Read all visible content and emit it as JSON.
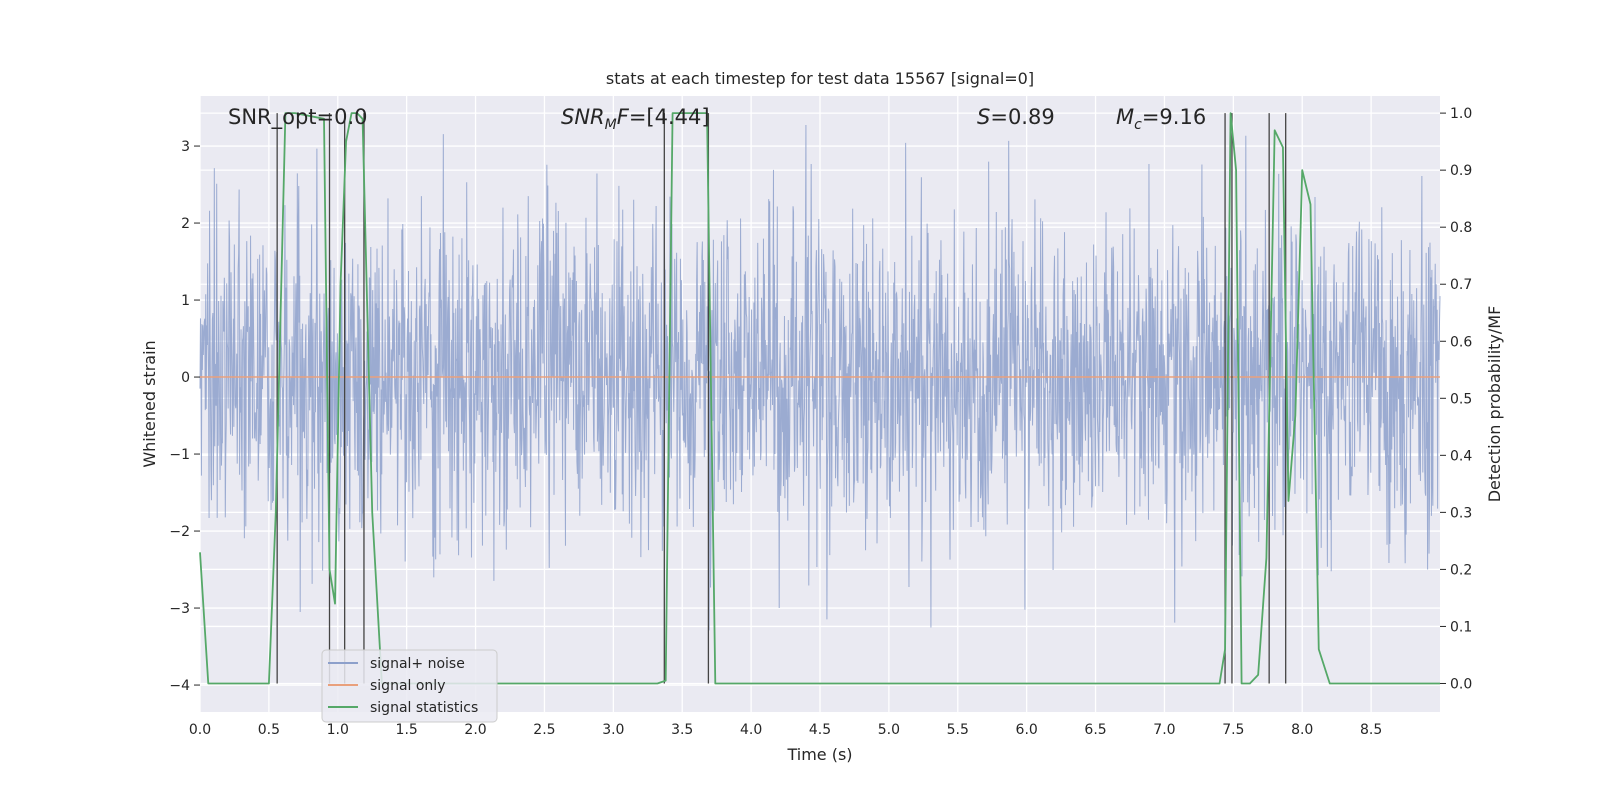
{
  "chart_data": {
    "type": "line",
    "title": "stats at each timestep for test data 15567 [signal=0]",
    "xlabel": "Time (s)",
    "ylabel_left": "Whitened strain",
    "ylabel_right": "Detection probability/MF",
    "xlim": [
      0.0,
      9.0
    ],
    "ylim_left": [
      -4.35,
      3.65
    ],
    "ylim_right": [
      -0.05,
      1.03
    ],
    "x_ticks": [
      "0.0",
      "0.5",
      "1.0",
      "1.5",
      "2.0",
      "2.5",
      "3.0",
      "3.5",
      "4.0",
      "4.5",
      "5.0",
      "5.5",
      "6.0",
      "6.5",
      "7.0",
      "7.5",
      "8.0",
      "8.5"
    ],
    "y_ticks_left": [
      "3",
      "2",
      "1",
      "0",
      "−1",
      "−2",
      "−3",
      "−4"
    ],
    "y_ticks_right": [
      "1.0",
      "0.9",
      "0.8",
      "0.7",
      "0.6",
      "0.5",
      "0.4",
      "0.3",
      "0.2",
      "0.1",
      "0.0"
    ],
    "grid": true,
    "legend_placement": "lower-left",
    "annotations": {
      "snr_opt": "SNR_opt=0.0",
      "snr_mf": "SNR_MF=[4.44]",
      "s_value": "S=0.89",
      "mc_value": "M_c=9.16"
    },
    "series": [
      {
        "name": "signal+ noise",
        "color": "#8da0cb",
        "axis": "left",
        "description": "whitened strain noise, roughly Gaussian, amplitude mostly within ±2, extremes near ±3.4"
      },
      {
        "name": "signal only",
        "color": "#e9a07c",
        "axis": "left",
        "x": [
          0.0,
          9.0
        ],
        "y": [
          0.0,
          0.0
        ]
      },
      {
        "name": "signal statistics",
        "color": "#55a868",
        "axis": "right",
        "x": [
          0.0,
          0.06,
          0.5,
          0.55,
          0.62,
          0.69,
          0.9,
          0.94,
          0.98,
          1.02,
          1.06,
          1.1,
          1.14,
          1.18,
          1.25,
          1.32,
          3.32,
          3.38,
          3.43,
          3.68,
          3.74,
          3.78,
          7.4,
          7.44,
          7.48,
          7.52,
          7.56,
          7.62,
          7.68,
          7.74,
          7.8,
          7.86,
          7.9,
          7.95,
          8.0,
          8.06,
          8.12,
          8.2,
          8.26,
          9.0
        ],
        "y": [
          0.23,
          0.0,
          0.0,
          0.3,
          1.0,
          1.0,
          0.99,
          0.2,
          0.14,
          0.7,
          0.95,
          1.0,
          1.0,
          0.99,
          0.3,
          0.0,
          0.0,
          0.005,
          1.0,
          1.0,
          0.0,
          0.0,
          0.0,
          0.06,
          1.0,
          0.9,
          0.0,
          0.0,
          0.015,
          0.22,
          0.97,
          0.94,
          0.32,
          0.47,
          0.9,
          0.84,
          0.06,
          0.0,
          0.0,
          0.0
        ]
      }
    ],
    "event_markers_x": [
      0.56,
      0.94,
      1.05,
      1.19,
      3.37,
      3.69,
      7.44,
      7.49,
      7.76,
      7.88
    ]
  },
  "legend": [
    {
      "label": "signal+ noise",
      "color": "#8da0cb"
    },
    {
      "label": "signal only",
      "color": "#e9a07c"
    },
    {
      "label": "signal statistics",
      "color": "#55a868"
    }
  ]
}
